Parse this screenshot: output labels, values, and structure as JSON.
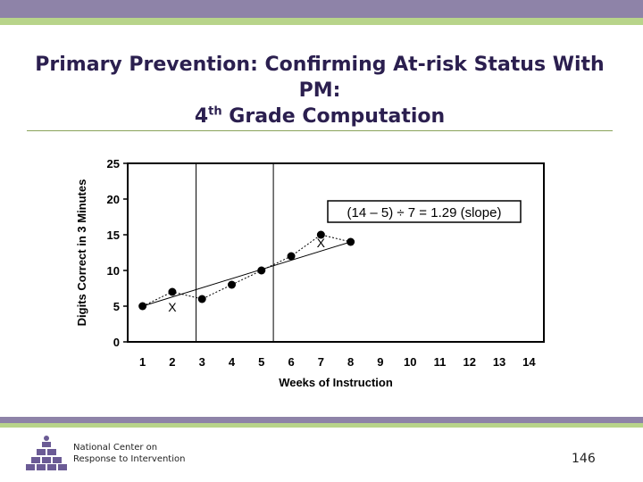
{
  "slide": {
    "title_line1": "Primary Prevention: Confirming At-risk Status With",
    "title_line2": "PM:",
    "title_line3_pre": "4",
    "title_line3_sup": "th",
    "title_line3_post": " Grade Computation",
    "org_line1": "National Center on",
    "org_line2": "Response to Intervention",
    "page_number": "146",
    "colors": {
      "header": "#8e83a8",
      "accent": "#b8d48a",
      "title": "#2b1f4f"
    }
  },
  "chart_data": {
    "type": "line",
    "ylabel": "Digits Correct in 3 Minutes",
    "xlabel": "Weeks of Instruction",
    "xlim": [
      0.5,
      14.5
    ],
    "ylim": [
      0,
      25
    ],
    "x_ticks": [
      1,
      2,
      3,
      4,
      5,
      6,
      7,
      8,
      9,
      10,
      11,
      12,
      13,
      14
    ],
    "y_ticks": [
      0,
      5,
      10,
      15,
      20,
      25
    ],
    "grid": false,
    "series": [
      {
        "points": [
          [
            1,
            5
          ],
          [
            2,
            7
          ],
          [
            3,
            6
          ],
          [
            4,
            8
          ],
          [
            5,
            10
          ],
          [
            6,
            12
          ],
          [
            7,
            15
          ],
          [
            8,
            14
          ]
        ]
      }
    ],
    "phase_lines_x": [
      2.8,
      5.4
    ],
    "trend_line": {
      "from": [
        1,
        5
      ],
      "to": [
        8,
        14
      ]
    },
    "annotations": [
      {
        "text": "X",
        "x": 2,
        "y": 5
      },
      {
        "text": "X",
        "x": 7,
        "y": 14
      },
      {
        "text": "(14 – 5) ÷ 7 = 1.29 (slope)"
      }
    ]
  }
}
